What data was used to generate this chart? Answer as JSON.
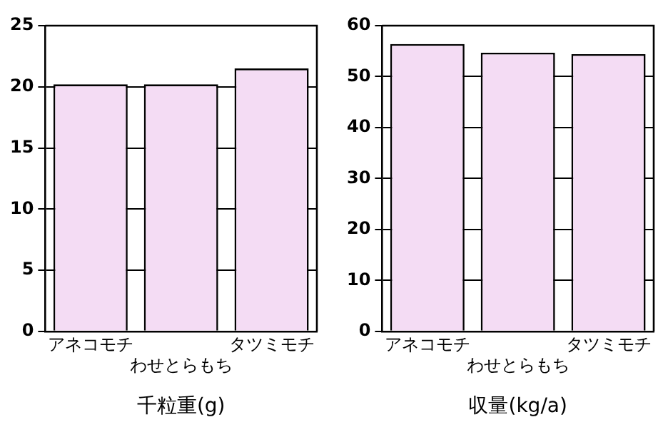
{
  "chart_data": [
    {
      "type": "bar",
      "xlabel": "千粒重(g)",
      "categories": [
        "アネコモチ",
        "わせとらもち",
        "タツミモチ"
      ],
      "values": [
        20.2,
        20.2,
        21.5
      ],
      "color": "#f4dcf4",
      "ylim": [
        0,
        25
      ],
      "yticks": [
        0,
        5,
        10,
        15,
        20,
        25
      ],
      "grid": "y"
    },
    {
      "type": "bar",
      "xlabel": "収量(kg/a)",
      "categories": [
        "アネコモチ",
        "わせとらもち",
        "タツミモチ"
      ],
      "values": [
        56.4,
        54.7,
        54.4
      ],
      "color": "#f4dcf4",
      "ylim": [
        0,
        60
      ],
      "yticks": [
        0,
        10,
        20,
        30,
        40,
        50,
        60
      ],
      "grid": "y"
    }
  ]
}
